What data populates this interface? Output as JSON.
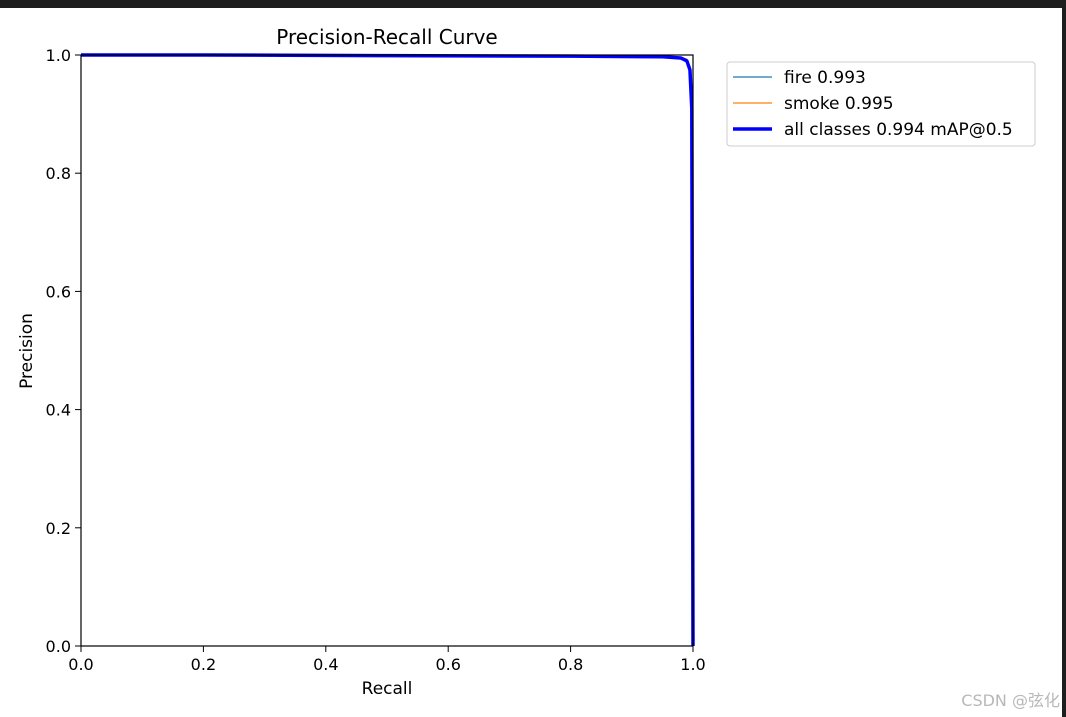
{
  "watermark": "CSDN @弦化",
  "chart_data": {
    "type": "line",
    "title": "Precision-Recall Curve",
    "xlabel": "Recall",
    "ylabel": "Precision",
    "xlim": [
      0.0,
      1.0
    ],
    "ylim": [
      0.0,
      1.0
    ],
    "xticks": [
      "0.0",
      "0.2",
      "0.4",
      "0.6",
      "0.8",
      "1.0"
    ],
    "yticks": [
      "0.0",
      "0.2",
      "0.4",
      "0.6",
      "0.8",
      "1.0"
    ],
    "grid": false,
    "legend_position": "outside-upper-right",
    "series": [
      {
        "name": "fire 0.993",
        "color": "#1f77b4",
        "x": [
          0.0,
          0.2,
          0.5,
          0.8,
          0.95,
          0.98,
          0.99,
          0.995,
          0.998,
          1.0
        ],
        "y": [
          1.0,
          1.0,
          0.999,
          0.998,
          0.997,
          0.995,
          0.99,
          0.97,
          0.9,
          0.0
        ]
      },
      {
        "name": "smoke 0.995",
        "color": "#ff7f0e",
        "x": [
          0.0,
          0.2,
          0.5,
          0.8,
          0.95,
          0.98,
          0.99,
          0.995,
          0.998,
          1.0
        ],
        "y": [
          1.0,
          1.0,
          1.0,
          0.999,
          0.998,
          0.996,
          0.993,
          0.98,
          0.92,
          0.0
        ]
      },
      {
        "name": "all classes 0.994 mAP@0.5",
        "color": "#0000ff",
        "x": [
          0.0,
          0.2,
          0.5,
          0.8,
          0.95,
          0.98,
          0.99,
          0.995,
          0.998,
          1.0
        ],
        "y": [
          1.0,
          1.0,
          0.999,
          0.998,
          0.997,
          0.995,
          0.99,
          0.975,
          0.91,
          0.0
        ]
      }
    ]
  }
}
